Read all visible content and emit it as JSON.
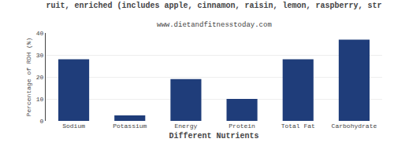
{
  "chart_data": {
    "type": "bar",
    "title": "ruit, enriched (includes apple, cinnamon, raisin, lemon, raspberry, str",
    "subtitle": "www.dietandfitnesstoday.com",
    "xlabel": "Different Nutrients",
    "ylabel": "Percentage of RDH (%)",
    "categories": [
      "Sodium",
      "Potassium",
      "Energy",
      "Protein",
      "Total Fat",
      "Carbohydrate"
    ],
    "values": [
      28,
      2.5,
      19,
      10,
      28,
      37
    ],
    "color": "#1F3D7A",
    "ylim": [
      0,
      40
    ],
    "yticks": [
      0,
      10,
      20,
      30,
      40
    ],
    "grid": true
  }
}
